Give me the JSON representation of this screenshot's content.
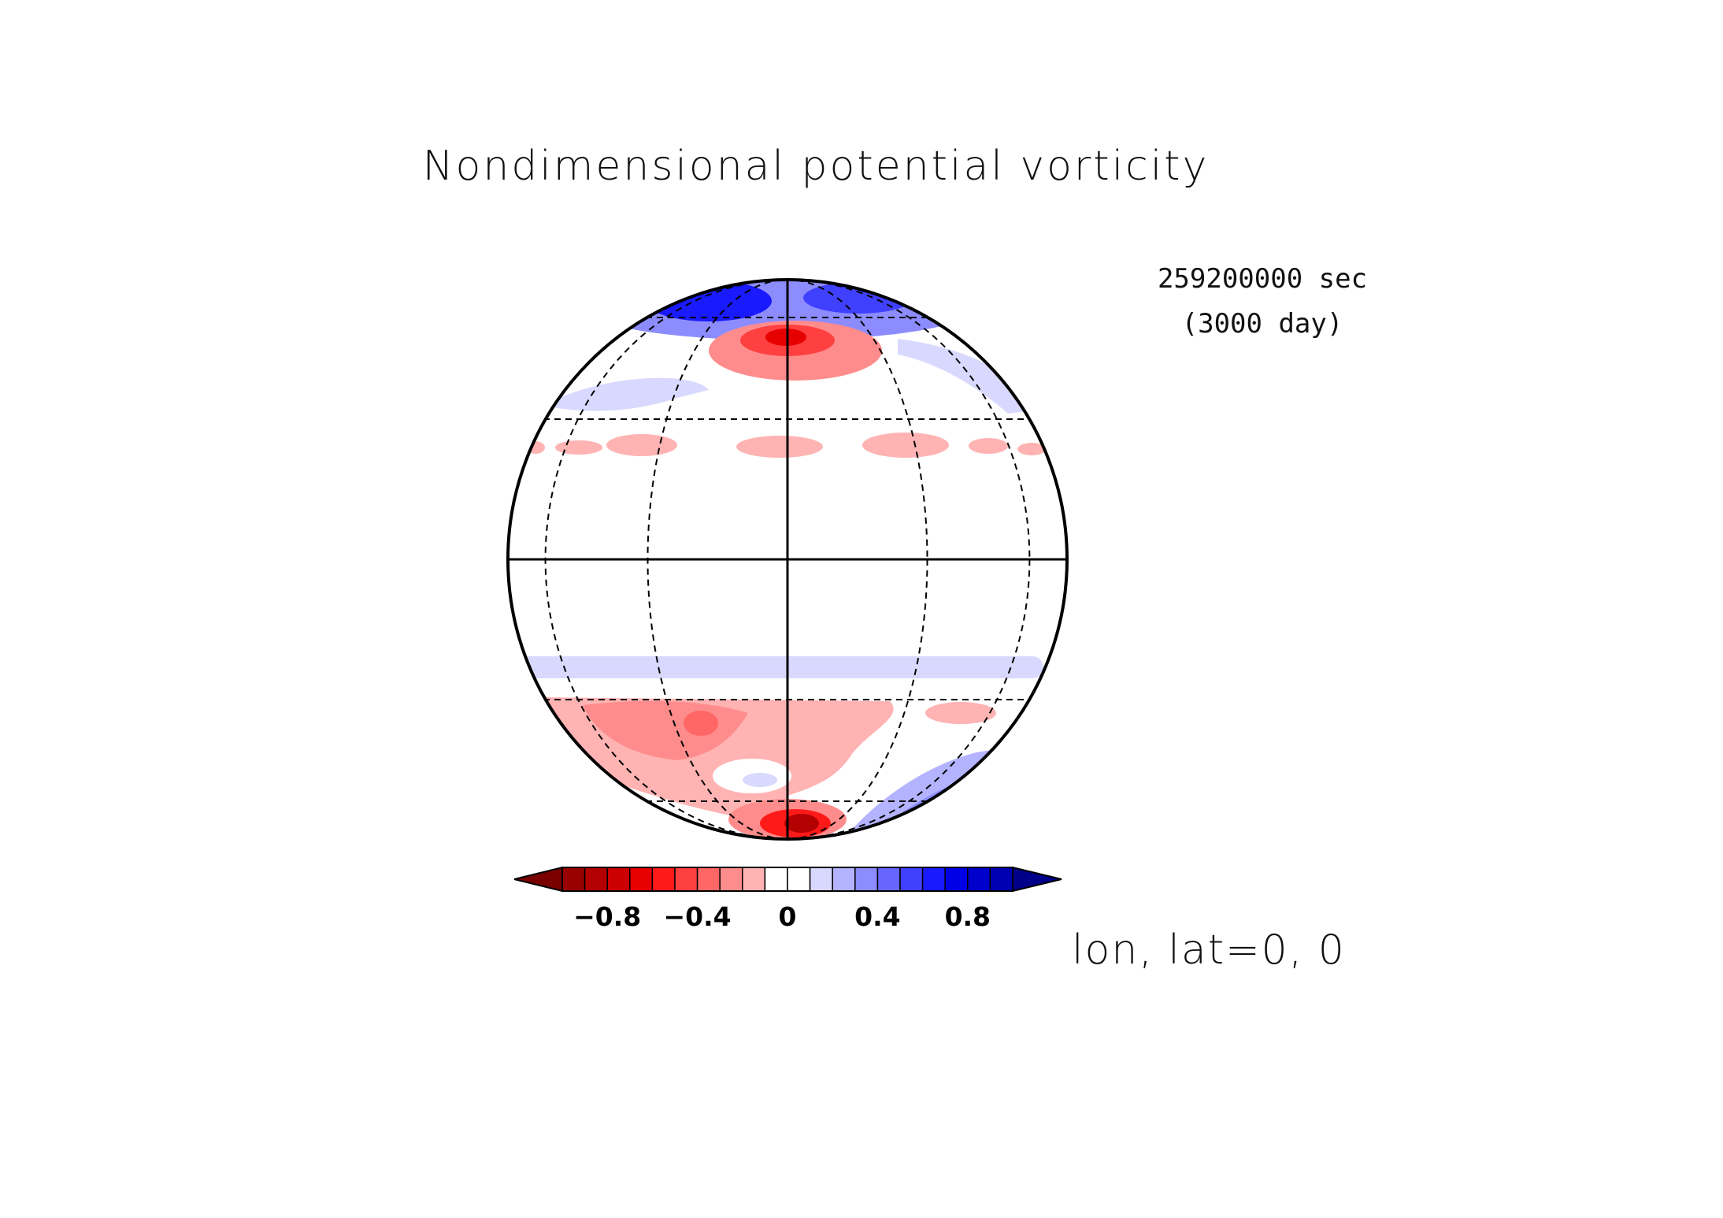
{
  "chart_data": {
    "type": "heatmap",
    "projection": "orthographic",
    "title": "Nondimensional potential vorticity",
    "time": {
      "seconds_label": "259200000 sec",
      "days_label": "(3000 day)"
    },
    "projection_label": "lon, lat=0, 0",
    "center": {
      "lon": 0,
      "lat": 0
    },
    "colorbar": {
      "orientation": "horizontal",
      "extend": "both",
      "levels": [
        -1.0,
        -0.9,
        -0.8,
        -0.7,
        -0.6,
        -0.5,
        -0.4,
        -0.3,
        -0.2,
        -0.1,
        0.0,
        0.1,
        0.2,
        0.3,
        0.4,
        0.5,
        0.6,
        0.7,
        0.8,
        0.9,
        1.0
      ],
      "colors": [
        "#7a0000",
        "#990000",
        "#b30000",
        "#cc0000",
        "#e60000",
        "#ff1a1a",
        "#ff4040",
        "#ff6666",
        "#ff8c8c",
        "#ffb3b3",
        "#ffffff",
        "#ffffff",
        "#d9d9ff",
        "#b3b3ff",
        "#8c8cff",
        "#6666ff",
        "#4040ff",
        "#1a1aff",
        "#0000e6",
        "#0000cc",
        "#0000b3",
        "#00008b"
      ],
      "tick_values": [
        -0.8,
        -0.4,
        0,
        0.4,
        0.8
      ],
      "tick_labels": [
        "−0.8",
        "−0.4",
        "0",
        "0.4",
        "0.8"
      ]
    },
    "graticule": {
      "meridians_deg": [
        -60,
        -30,
        30,
        60
      ],
      "parallels_deg": [
        -60,
        -30,
        30,
        60
      ],
      "solid_lines": [
        "equator",
        "central meridian"
      ]
    },
    "fields": [
      {
        "label": "northern polar vorticity",
        "lat": [
          65,
          80
        ],
        "lon": [
          -50,
          90
        ],
        "value": 0.8
      },
      {
        "label": "high-latitude negative vorticity",
        "lat": [
          63,
          75
        ],
        "lon": [
          -20,
          25
        ],
        "value": -0.7
      },
      {
        "label": "mid-latitude weak positive band",
        "lat": [
          45,
          58
        ],
        "lon": [
          -80,
          80
        ],
        "value": 0.2
      },
      {
        "label": "northern weak negative cells",
        "lat": [
          24,
          30
        ],
        "lon": [
          -80,
          80
        ],
        "value": -0.2
      },
      {
        "label": "southern weak positive band",
        "lat": [
          -23,
          -18
        ],
        "lon": [
          -90,
          90
        ],
        "value": 0.15
      },
      {
        "label": "southern negative region",
        "lat": [
          -62,
          -30
        ],
        "lon": [
          -80,
          40
        ],
        "value": -0.3
      },
      {
        "label": "southern polar negative core",
        "lat": [
          -90,
          -66
        ],
        "lon": [
          -20,
          10
        ],
        "value": -1.0
      },
      {
        "label": "southern positive region",
        "lat": [
          -75,
          -45
        ],
        "lon": [
          20,
          85
        ],
        "value": 0.4
      }
    ]
  }
}
